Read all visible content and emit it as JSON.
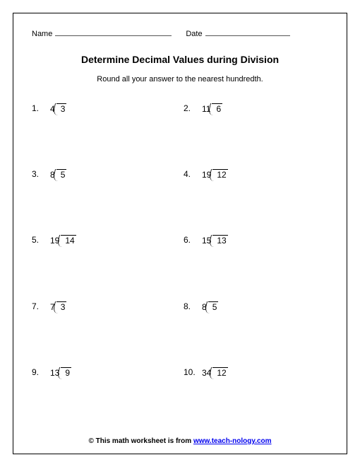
{
  "header": {
    "name_label": "Name",
    "date_label": "Date",
    "name_blank_width": 165,
    "date_blank_width": 120
  },
  "title": "Determine Decimal Values during Division",
  "instruction": "Round all your answer to the nearest hundredth.",
  "problems": [
    {
      "n": "1.",
      "divisor": "4",
      "dividend": "3"
    },
    {
      "n": "2.",
      "divisor": "11",
      "dividend": "6"
    },
    {
      "n": "3.",
      "divisor": "8",
      "dividend": "5"
    },
    {
      "n": "4.",
      "divisor": "19",
      "dividend": "12"
    },
    {
      "n": "5.",
      "divisor": "19",
      "dividend": "14"
    },
    {
      "n": "6.",
      "divisor": "15",
      "dividend": "13"
    },
    {
      "n": "7.",
      "divisor": "7",
      "dividend": "3"
    },
    {
      "n": "8.",
      "divisor": "8",
      "dividend": "5"
    },
    {
      "n": "9.",
      "divisor": "13",
      "dividend": "9"
    },
    {
      "n": "10.",
      "divisor": "34",
      "dividend": "12"
    }
  ],
  "footer": {
    "prefix": "© This math worksheet is from ",
    "link_text": "www.teach-nology.com"
  }
}
